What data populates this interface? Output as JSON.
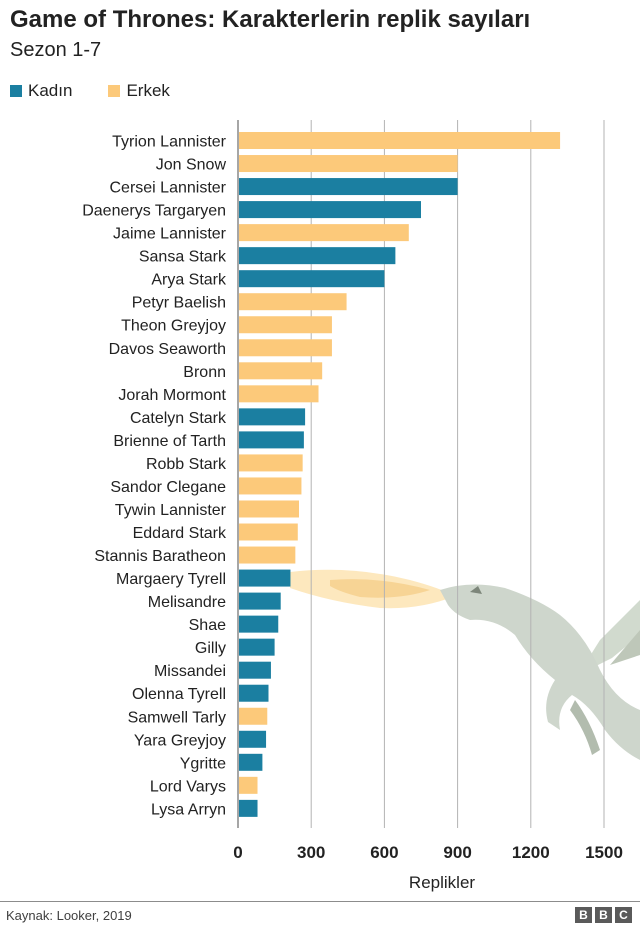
{
  "chart_data": {
    "type": "bar",
    "orientation": "horizontal",
    "title": "Game of Thrones: Karakterlerin replik sayıları",
    "subtitle": "Sezon 1-7",
    "xlabel": "Replikler",
    "ylabel": "",
    "xlim": [
      0,
      1650
    ],
    "xticks": [
      0,
      300,
      600,
      900,
      1200,
      1500
    ],
    "grid": true,
    "legend_position": "top-left",
    "legend": [
      {
        "key": "female",
        "label": "Kadın",
        "color": "#1b7fa1"
      },
      {
        "key": "male",
        "label": "Erkek",
        "color": "#fcc97a"
      }
    ],
    "categories": [
      "Tyrion Lannister",
      "Jon Snow",
      "Cersei Lannister",
      "Daenerys Targaryen",
      "Jaime Lannister",
      "Sansa Stark",
      "Arya Stark",
      "Petyr Baelish",
      "Theon Greyjoy",
      "Davos Seaworth",
      "Bronn",
      "Jorah Mormont",
      "Catelyn Stark",
      "Brienne of Tarth",
      "Robb Stark",
      "Sandor Clegane",
      "Tywin Lannister",
      "Eddard Stark",
      "Stannis Baratheon",
      "Margaery Tyrell",
      "Melisandre",
      "Shae",
      "Gilly",
      "Missandei",
      "Olenna Tyrell",
      "Samwell Tarly",
      "Yara Greyjoy",
      "Ygritte",
      "Lord Varys",
      "Lysa Arryn"
    ],
    "values": [
      1320,
      900,
      900,
      750,
      700,
      645,
      600,
      445,
      385,
      385,
      345,
      330,
      275,
      270,
      265,
      260,
      250,
      245,
      235,
      215,
      175,
      165,
      150,
      135,
      125,
      120,
      115,
      100,
      80,
      80
    ],
    "groups": [
      "male",
      "male",
      "female",
      "female",
      "male",
      "female",
      "female",
      "male",
      "male",
      "male",
      "male",
      "male",
      "female",
      "female",
      "male",
      "male",
      "male",
      "male",
      "male",
      "female",
      "female",
      "female",
      "female",
      "female",
      "female",
      "male",
      "female",
      "female",
      "male",
      "female"
    ]
  },
  "footer": {
    "source": "Kaynak: Looker, 2019",
    "logo": [
      "B",
      "B",
      "C"
    ]
  }
}
